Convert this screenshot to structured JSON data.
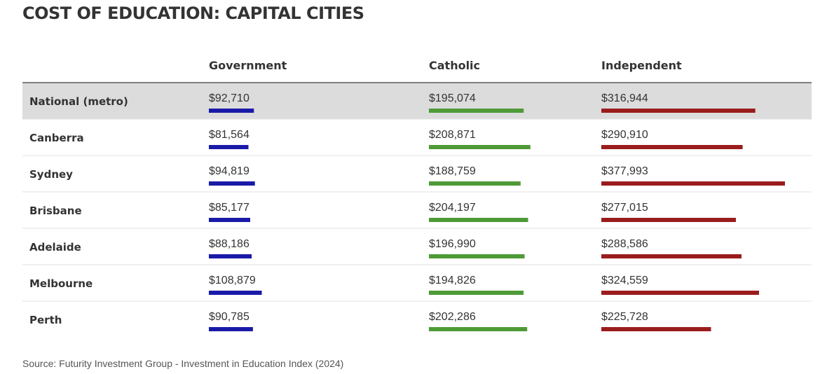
{
  "chart_data": {
    "type": "table",
    "title": "COST OF EDUCATION: CAPITAL CITIES",
    "columns": [
      "Government",
      "Catholic",
      "Independent"
    ],
    "rows": [
      {
        "city": "National (metro)",
        "values": [
          92710,
          195074,
          316944
        ],
        "labels": [
          "$92,710",
          "$195,074",
          "$316,944"
        ],
        "highlight": true
      },
      {
        "city": "Canberra",
        "values": [
          81564,
          208871,
          290910
        ],
        "labels": [
          "$81,564",
          "$208,871",
          "$290,910"
        ]
      },
      {
        "city": "Sydney",
        "values": [
          94819,
          188759,
          377993
        ],
        "labels": [
          "$94,819",
          "$188,759",
          "$377,993"
        ]
      },
      {
        "city": "Brisbane",
        "values": [
          85177,
          204197,
          277015
        ],
        "labels": [
          "$85,177",
          "$204,197",
          "$277,015"
        ]
      },
      {
        "city": "Adelaide",
        "values": [
          88186,
          196990,
          288586
        ],
        "labels": [
          "$88,186",
          "$196,990",
          "$288,586"
        ]
      },
      {
        "city": "Melbourne",
        "values": [
          108879,
          194826,
          324559
        ],
        "labels": [
          "$108,879",
          "$194,826",
          "$324,559"
        ]
      },
      {
        "city": "Perth",
        "values": [
          90785,
          202286,
          225728
        ],
        "labels": [
          "$90,785",
          "$202,286",
          "$225,728"
        ]
      }
    ],
    "colors": [
      "#1a1aa8",
      "#4e9a37",
      "#9b1c1c"
    ],
    "source": "Source: Futurity Investment Group - Investment in Education Index (2024)"
  }
}
